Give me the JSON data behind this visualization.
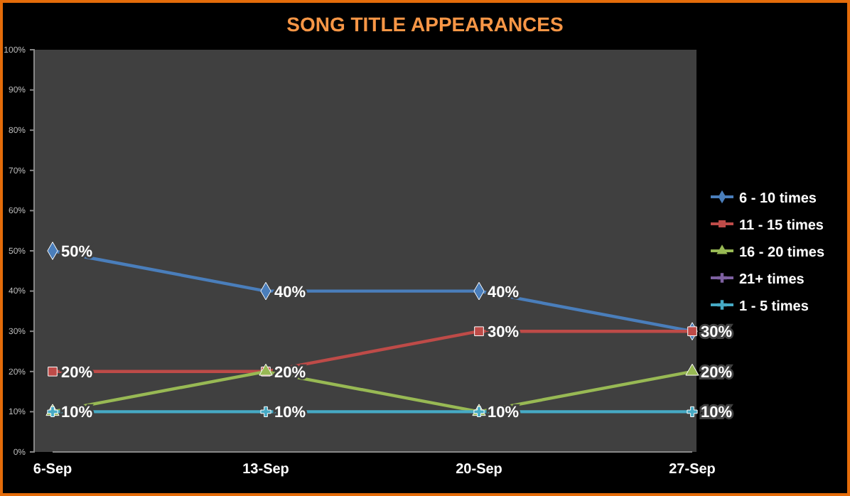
{
  "chart_data": {
    "type": "line",
    "title": "SONG TITLE APPEARANCES",
    "categories": [
      "6-Sep",
      "13-Sep",
      "20-Sep",
      "27-Sep"
    ],
    "ylim": [
      0,
      100
    ],
    "yticks": [
      {
        "value": 0,
        "label": "0%"
      },
      {
        "value": 10,
        "label": "10%"
      },
      {
        "value": 20,
        "label": "20%"
      },
      {
        "value": 30,
        "label": "30%"
      },
      {
        "value": 40,
        "label": "40%"
      },
      {
        "value": 50,
        "label": "50%"
      },
      {
        "value": 60,
        "label": "60%"
      },
      {
        "value": 70,
        "label": "70%"
      },
      {
        "value": 80,
        "label": "80%"
      },
      {
        "value": 90,
        "label": "90%"
      },
      {
        "value": 100,
        "label": "100%"
      }
    ],
    "grid": false,
    "legend": "right",
    "series": [
      {
        "name": "6 - 10 times",
        "color": "#4a7ebb",
        "marker": "diamond",
        "values": [
          50,
          40,
          40,
          30
        ],
        "value_labels": [
          "50%",
          "40%",
          "40%",
          "30%"
        ]
      },
      {
        "name": "11 - 15 times",
        "color": "#be4b48",
        "marker": "square",
        "values": [
          20,
          20,
          30,
          30
        ],
        "value_labels": [
          "20%",
          null,
          "30%",
          null
        ]
      },
      {
        "name": "16 - 20 times",
        "color": "#98b954",
        "marker": "triangle",
        "values": [
          10,
          20,
          10,
          20
        ],
        "value_labels": [
          "10%",
          "20%",
          "10%",
          "20%"
        ]
      },
      {
        "name": "21+ times",
        "color": "#7d60a0",
        "marker": "cross",
        "values": [
          null,
          null,
          null,
          null
        ],
        "value_labels": [
          null,
          null,
          null,
          null
        ]
      },
      {
        "name": "1 - 5 times",
        "color": "#46aac5",
        "marker": "cross",
        "values": [
          10,
          10,
          10,
          10
        ],
        "value_labels": [
          null,
          "10%",
          null,
          "10%"
        ]
      }
    ]
  }
}
